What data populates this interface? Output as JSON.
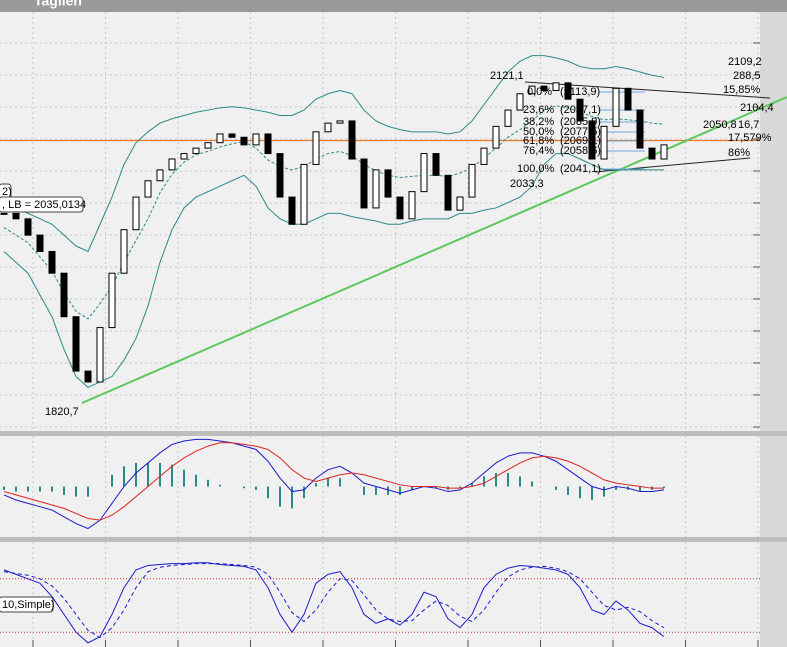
{
  "chart_data": {
    "type": "candlestick",
    "title": "Tagilen",
    "ylim": [
      1794,
      2182
    ],
    "close": [
      1995,
      1990,
      1975,
      1960,
      1940,
      1900,
      1850,
      1840,
      1890,
      1940,
      1980,
      2010,
      2025,
      2035,
      2045,
      2050,
      2055,
      2060,
      2068,
      2065,
      2058,
      2068,
      2050,
      2010,
      1985,
      2040,
      2070,
      2078,
      2080,
      2045,
      2000,
      2035,
      2010,
      1990,
      2015,
      2050,
      2030,
      1998,
      2010,
      2040,
      2055,
      2075,
      2090,
      2105,
      2112,
      2108,
      2115,
      2100,
      2080,
      2045,
      2075,
      2110,
      2090,
      2055,
      2045,
      2058
    ],
    "series": [
      {
        "name": "upper",
        "color": "#2a8a8a",
        "values": [
          2005,
          2000,
          1995,
          1990,
          1985,
          1975,
          1965,
          1960,
          1985,
          2010,
          2040,
          2060,
          2070,
          2078,
          2082,
          2085,
          2088,
          2090,
          2092,
          2093,
          2092,
          2090,
          2088,
          2085,
          2085,
          2090,
          2100,
          2105,
          2108,
          2105,
          2090,
          2080,
          2075,
          2072,
          2070,
          2070,
          2070,
          2068,
          2070,
          2080,
          2095,
          2110,
          2125,
          2135,
          2140,
          2140,
          2138,
          2135,
          2130,
          2128,
          2128,
          2130,
          2128,
          2125,
          2122,
          2120
        ]
      },
      {
        "name": "middle",
        "color": "#2a8a8a",
        "values": [
          1982,
          1975,
          1968,
          1955,
          1942,
          1922,
          1905,
          1898,
          1912,
          1928,
          1950,
          1970,
          1990,
          2014,
          2031,
          2042,
          2049,
          2052,
          2056,
          2059,
          2061,
          2055,
          2044,
          2038,
          2035,
          2038,
          2045,
          2050,
          2052,
          2048,
          2040,
          2034,
          2030,
          2028,
          2029,
          2030,
          2030,
          2029,
          2032,
          2037,
          2046,
          2055,
          2065,
          2072,
          2080,
          2090,
          2094,
          2092,
          2088,
          2084,
          2081,
          2082,
          2081,
          2080,
          2078,
          2077
        ]
      },
      {
        "name": "lower",
        "color": "#2a8a8a",
        "values": [
          1960,
          1950,
          1940,
          1920,
          1900,
          1870,
          1845,
          1835,
          1840,
          1845,
          1860,
          1880,
          1910,
          1950,
          1980,
          2000,
          2010,
          2015,
          2020,
          2025,
          2030,
          2020,
          2000,
          1990,
          1985,
          1985,
          1990,
          1995,
          1995,
          1992,
          1990,
          1988,
          1985,
          1985,
          1988,
          1990,
          1990,
          1990,
          1995,
          1995,
          1998,
          2000,
          2005,
          2010,
          2020,
          2040,
          2050,
          2050,
          2045,
          2040,
          2035,
          2035,
          2035,
          2035,
          2035,
          2035
        ]
      }
    ],
    "level": 2062,
    "level_color": "#e8782a",
    "trend_color": "#5cc85c",
    "annotations": [
      "2121,1",
      "1820,7",
      "2033,3",
      "2109,2",
      "288,5",
      "15,85%",
      "2104,4",
      "2050,8",
      "16,7",
      "17,579%",
      "86%"
    ],
    "fib": [
      {
        "level": "0,0%",
        "price": "(2113,9)"
      },
      {
        "level": "23,6%",
        "price": "(2097,1)"
      },
      {
        "level": "38,2%",
        "price": "(2085,9)"
      },
      {
        "level": "50,0%",
        "price": "(2077,5)"
      },
      {
        "level": "61,8%",
        "price": "(2069,1)"
      },
      {
        "level": "76,4%",
        "price": "(2058,6)"
      },
      {
        "level": "100,0%",
        "price": "(2041,1)"
      }
    ],
    "legend_labels": [
      "2)",
      ", LB = 2035,0134",
      "10,Simple)"
    ],
    "macd": {
      "ylim": [
        -30,
        30
      ],
      "macd": [
        -5,
        -8,
        -10,
        -12,
        -14,
        -18,
        -22,
        -25,
        -20,
        -10,
        0,
        8,
        14,
        20,
        25,
        27,
        28,
        28,
        27,
        26,
        24,
        22,
        15,
        5,
        -3,
        -2,
        5,
        10,
        12,
        8,
        2,
        0,
        -2,
        -4,
        -2,
        0,
        -1,
        -3,
        -2,
        2,
        8,
        14,
        18,
        20,
        20,
        18,
        15,
        10,
        5,
        0,
        -2,
        0,
        -1,
        -3,
        -3,
        -2
      ],
      "signal": [
        -3,
        -5,
        -7,
        -9,
        -11,
        -13,
        -16,
        -19,
        -20,
        -17,
        -12,
        -6,
        0,
        6,
        12,
        17,
        21,
        24,
        26,
        26,
        25,
        24,
        22,
        17,
        10,
        5,
        3,
        5,
        7,
        8,
        7,
        5,
        3,
        1,
        0,
        0,
        0,
        -1,
        -1,
        0,
        2,
        6,
        10,
        14,
        17,
        18,
        17,
        15,
        12,
        8,
        4,
        2,
        1,
        0,
        -1,
        -1
      ],
      "histogram": [
        -2,
        -3,
        -3,
        -3,
        -3,
        -5,
        -6,
        -6,
        0,
        7,
        12,
        14,
        14,
        14,
        13,
        10,
        7,
        4,
        1,
        0,
        -1,
        -2,
        -7,
        -12,
        -13,
        -7,
        2,
        5,
        5,
        0,
        -5,
        -5,
        -5,
        -5,
        -2,
        0,
        -1,
        -2,
        -1,
        2,
        6,
        8,
        8,
        6,
        3,
        0,
        -2,
        -5,
        -7,
        -8,
        -6,
        -2,
        -2,
        -3,
        -2,
        -1
      ]
    },
    "stochastic": {
      "ylim": [
        0,
        100
      ],
      "levels": [
        80,
        20
      ],
      "k": [
        90,
        85,
        80,
        75,
        60,
        40,
        20,
        8,
        15,
        40,
        70,
        90,
        95,
        96,
        97,
        97,
        98,
        98,
        96,
        95,
        94,
        90,
        70,
        40,
        20,
        40,
        75,
        85,
        88,
        70,
        40,
        30,
        35,
        28,
        40,
        65,
        60,
        35,
        25,
        40,
        70,
        85,
        92,
        95,
        94,
        92,
        90,
        85,
        70,
        45,
        40,
        55,
        45,
        30,
        25,
        15
      ],
      "d": [
        88,
        86,
        84,
        80,
        72,
        58,
        40,
        22,
        14,
        25,
        45,
        70,
        88,
        93,
        95,
        96,
        97,
        97,
        97,
        96,
        95,
        93,
        85,
        65,
        42,
        32,
        45,
        65,
        80,
        78,
        62,
        45,
        35,
        32,
        33,
        45,
        55,
        50,
        38,
        32,
        45,
        65,
        82,
        90,
        93,
        94,
        92,
        88,
        80,
        65,
        50,
        45,
        48,
        43,
        33,
        25
      ]
    }
  }
}
